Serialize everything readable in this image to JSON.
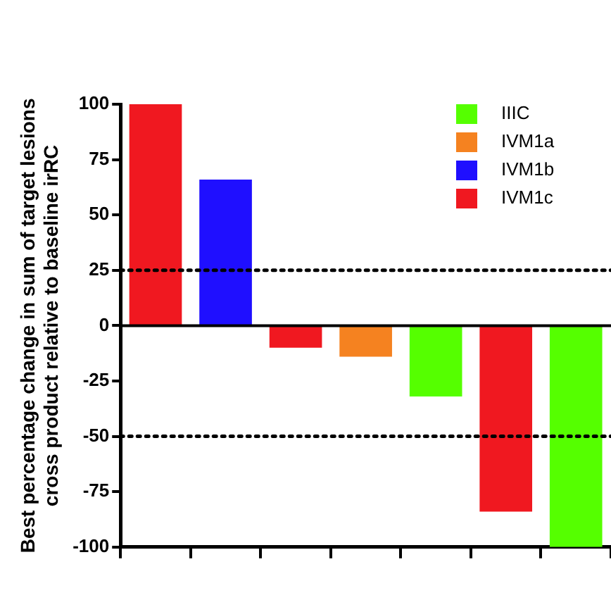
{
  "chart_data": {
    "type": "bar",
    "ylabel": "Best percentage change in sum of target lesions\ncross product relative to baseline irRC",
    "categories": [
      null,
      null,
      null,
      null,
      null,
      null,
      null
    ],
    "series": [
      {
        "name": "IIIC",
        "color": "#55ff00",
        "values": [
          null,
          null,
          null,
          null,
          -32,
          null,
          -100
        ]
      },
      {
        "name": "IVM1a",
        "color": "#f58220",
        "values": [
          null,
          null,
          null,
          -14,
          null,
          null,
          null
        ]
      },
      {
        "name": "IVM1b",
        "color": "#1f0fff",
        "values": [
          null,
          66,
          null,
          null,
          null,
          null,
          null
        ]
      },
      {
        "name": "IVM1c",
        "color": "#f01820",
        "values": [
          100,
          null,
          -10,
          null,
          null,
          -84,
          null
        ]
      }
    ],
    "ylim": [
      -100,
      100
    ],
    "yticks": [
      -100,
      -75,
      -50,
      -25,
      0,
      25,
      50,
      75,
      100
    ],
    "grid": false,
    "legend": "top right",
    "ref_lines": [
      {
        "axis": "y",
        "value": 25,
        "line_style": "dotted"
      },
      {
        "axis": "y",
        "value": -50,
        "line_style": "dotted"
      }
    ]
  }
}
